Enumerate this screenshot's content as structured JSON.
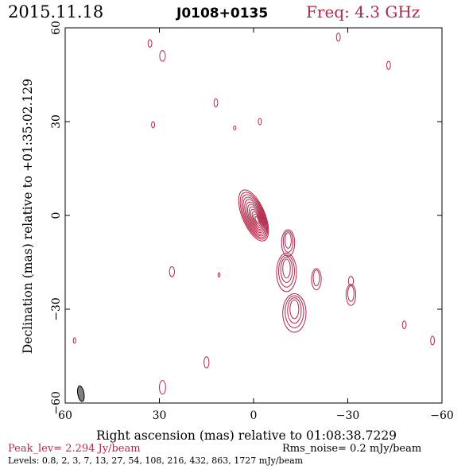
{
  "header": {
    "date": "2015.11.18",
    "source": "J0108+0135",
    "freq": "Freq: 4.3 GHz"
  },
  "footer": {
    "peak": "Peak_lev=  2.294 Jy/beam",
    "rms": "Rms_noise=  0.2 mJy/beam",
    "levels": "Levels: 0.8,   2,   3,   7,   13,   27,   54, 108, 216, 432, 863, 1727 mJy/beam"
  },
  "colors": {
    "contour": "#b0284a",
    "axis": "#000000",
    "beam": "#808080"
  },
  "chart_data": {
    "type": "contour",
    "xlabel": "Right ascension (mas) relative to 01:08:38.7229",
    "ylabel": "Declination (mas) relative to +01:35:02.129",
    "xlim": [
      60,
      -60
    ],
    "ylim": [
      -60,
      60
    ],
    "xticks": [
      60,
      30,
      0,
      -30,
      -60
    ],
    "yticks": [
      -60,
      -30,
      0,
      30,
      60
    ],
    "xtick_labels": [
      "60",
      "30",
      "0",
      "−30",
      "−60"
    ],
    "ytick_labels": [
      "−60",
      "−30",
      "0",
      "30",
      "60"
    ],
    "levels_mJy": [
      0.8,
      2,
      3,
      7,
      13,
      27,
      54,
      108,
      216,
      432,
      863,
      1727
    ],
    "core": {
      "x": 0,
      "y": 0,
      "rx": 3.6,
      "ry": 8.7,
      "pa": -23,
      "n_contours": 12
    },
    "jet_components": [
      {
        "x": -11,
        "y": -8,
        "rx": 1.0,
        "ry": 2.5,
        "n": 3
      },
      {
        "x": -10.5,
        "y": -17,
        "rx": 1.2,
        "ry": 3.0,
        "n": 4
      },
      {
        "x": -13,
        "y": -30,
        "rx": 1.4,
        "ry": 3.0,
        "n": 4
      },
      {
        "x": -20,
        "y": -20,
        "rx": 1.0,
        "ry": 2.5,
        "n": 2
      },
      {
        "x": -31,
        "y": -25,
        "rx": 1.0,
        "ry": 2.5,
        "n": 2
      }
    ],
    "noise_blobs": [
      {
        "x": 33,
        "y": 55,
        "rx": 0.6,
        "ry": 1.2
      },
      {
        "x": 29,
        "y": 51,
        "rx": 0.9,
        "ry": 1.7
      },
      {
        "x": 12,
        "y": 36,
        "rx": 0.6,
        "ry": 1.3
      },
      {
        "x": 32,
        "y": 29,
        "rx": 0.5,
        "ry": 1.0
      },
      {
        "x": 6,
        "y": 28,
        "rx": 0.4,
        "ry": 0.6
      },
      {
        "x": -2,
        "y": 30,
        "rx": 0.5,
        "ry": 1.0
      },
      {
        "x": -27,
        "y": 57,
        "rx": 0.6,
        "ry": 1.3
      },
      {
        "x": -43,
        "y": 48,
        "rx": 0.6,
        "ry": 1.3
      },
      {
        "x": 26,
        "y": -18,
        "rx": 0.8,
        "ry": 1.6
      },
      {
        "x": 11,
        "y": -19,
        "rx": 0.3,
        "ry": 0.7
      },
      {
        "x": -31,
        "y": -21,
        "rx": 0.8,
        "ry": 1.5
      },
      {
        "x": 15,
        "y": -47,
        "rx": 0.8,
        "ry": 1.8
      },
      {
        "x": 29,
        "y": -55,
        "rx": 1.0,
        "ry": 2.2
      },
      {
        "x": -48,
        "y": -35,
        "rx": 0.6,
        "ry": 1.2
      },
      {
        "x": -57,
        "y": -40,
        "rx": 0.6,
        "ry": 1.4
      },
      {
        "x": 57,
        "y": -40,
        "rx": 0.4,
        "ry": 0.9
      }
    ],
    "beam": {
      "x": 55,
      "y": -57,
      "rx": 1.0,
      "ry": 2.5,
      "pa": -10
    }
  }
}
